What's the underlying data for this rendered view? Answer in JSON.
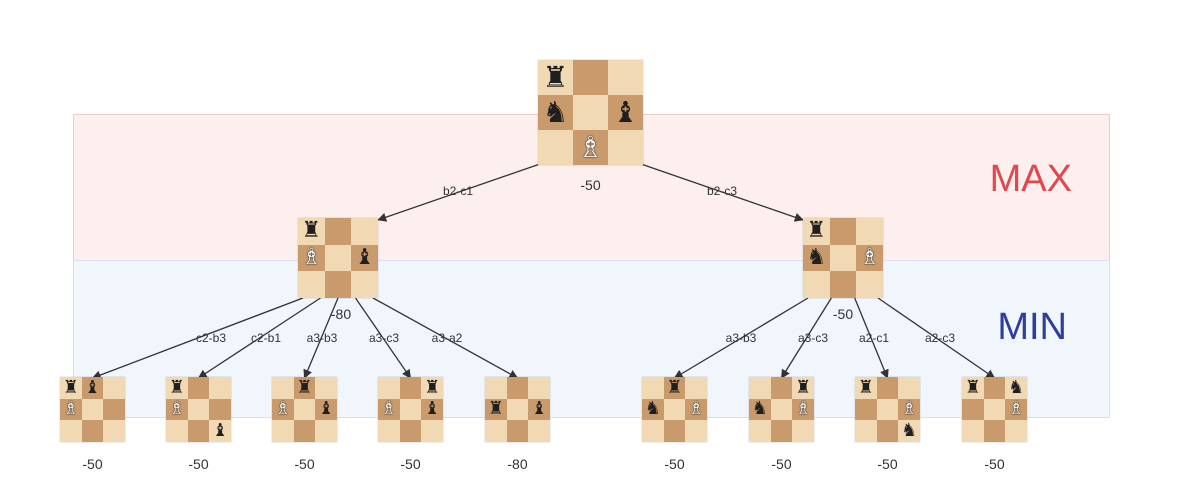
{
  "bands": {
    "max_label": "MAX",
    "min_label": "MIN"
  },
  "colors": {
    "max_band": "#fcefee",
    "min_band": "#f1f5fc",
    "max_text": "#e0484e",
    "min_text": "#2e3e9c",
    "light_square": "#f1d9b4",
    "dark_square": "#c99a6c"
  },
  "root": {
    "score": "-50",
    "pieces": [
      {
        "sq": "a3",
        "piece": "rook",
        "color": "black"
      },
      {
        "sq": "a2",
        "piece": "knight",
        "color": "black"
      },
      {
        "sq": "c2",
        "piece": "bishop",
        "color": "black"
      },
      {
        "sq": "b1",
        "piece": "bishop",
        "color": "white"
      }
    ]
  },
  "level1": [
    {
      "move": "b2-c1",
      "score": "-80",
      "pieces": [
        {
          "sq": "a3",
          "piece": "rook",
          "color": "black"
        },
        {
          "sq": "a2",
          "piece": "bishop",
          "color": "white"
        },
        {
          "sq": "c2",
          "piece": "bishop",
          "color": "black"
        }
      ]
    },
    {
      "move": "b2-c3",
      "score": "-50",
      "pieces": [
        {
          "sq": "a3",
          "piece": "rook",
          "color": "black"
        },
        {
          "sq": "a2",
          "piece": "knight",
          "color": "black"
        },
        {
          "sq": "c2",
          "piece": "bishop",
          "color": "white"
        }
      ]
    }
  ],
  "level2": [
    {
      "parent": 0,
      "move": "c2-b3",
      "score": "-50",
      "pieces": [
        {
          "sq": "a3",
          "piece": "rook",
          "color": "black"
        },
        {
          "sq": "b3",
          "piece": "bishop",
          "color": "black"
        },
        {
          "sq": "a2",
          "piece": "bishop",
          "color": "white"
        }
      ]
    },
    {
      "parent": 0,
      "move": "c2-b1",
      "score": "-50",
      "pieces": [
        {
          "sq": "a3",
          "piece": "rook",
          "color": "black"
        },
        {
          "sq": "a2",
          "piece": "bishop",
          "color": "white"
        },
        {
          "sq": "c1",
          "piece": "bishop",
          "color": "black"
        }
      ]
    },
    {
      "parent": 0,
      "move": "a3-b3",
      "score": "-50",
      "pieces": [
        {
          "sq": "b3",
          "piece": "rook",
          "color": "black"
        },
        {
          "sq": "a2",
          "piece": "bishop",
          "color": "white"
        },
        {
          "sq": "c2",
          "piece": "bishop",
          "color": "black"
        }
      ]
    },
    {
      "parent": 0,
      "move": "a3-c3",
      "score": "-50",
      "pieces": [
        {
          "sq": "c3",
          "piece": "rook",
          "color": "black"
        },
        {
          "sq": "a2",
          "piece": "bishop",
          "color": "white"
        },
        {
          "sq": "c2",
          "piece": "bishop",
          "color": "black"
        }
      ]
    },
    {
      "parent": 0,
      "move": "a3-a2",
      "score": "-80",
      "pieces": [
        {
          "sq": "a2",
          "piece": "rook",
          "color": "black"
        },
        {
          "sq": "c2",
          "piece": "bishop",
          "color": "black"
        }
      ]
    },
    {
      "parent": 1,
      "move": "a3-b3",
      "score": "-50",
      "pieces": [
        {
          "sq": "b3",
          "piece": "rook",
          "color": "black"
        },
        {
          "sq": "a2",
          "piece": "knight",
          "color": "black"
        },
        {
          "sq": "c2",
          "piece": "bishop",
          "color": "white"
        }
      ]
    },
    {
      "parent": 1,
      "move": "a3-c3",
      "score": "-50",
      "pieces": [
        {
          "sq": "c3",
          "piece": "rook",
          "color": "black"
        },
        {
          "sq": "a2",
          "piece": "knight",
          "color": "black"
        },
        {
          "sq": "c2",
          "piece": "bishop",
          "color": "white"
        }
      ]
    },
    {
      "parent": 1,
      "move": "a2-c1",
      "score": "-50",
      "pieces": [
        {
          "sq": "a3",
          "piece": "rook",
          "color": "black"
        },
        {
          "sq": "c2",
          "piece": "bishop",
          "color": "white"
        },
        {
          "sq": "c1",
          "piece": "knight",
          "color": "black"
        }
      ]
    },
    {
      "parent": 1,
      "move": "a2-c3",
      "score": "-50",
      "pieces": [
        {
          "sq": "a3",
          "piece": "rook",
          "color": "black"
        },
        {
          "sq": "c3",
          "piece": "knight",
          "color": "black"
        },
        {
          "sq": "c2",
          "piece": "bishop",
          "color": "white"
        }
      ]
    }
  ]
}
